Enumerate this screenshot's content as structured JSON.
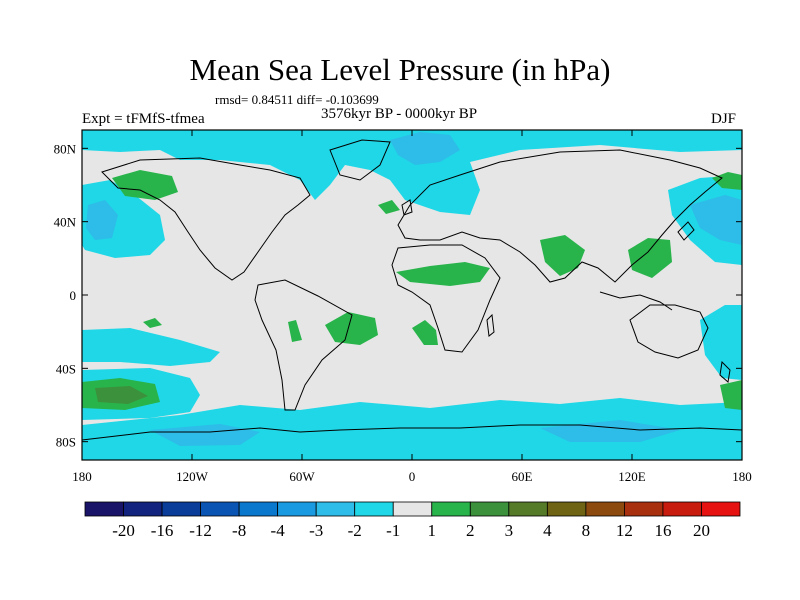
{
  "title": "Mean Sea Level Pressure (in hPa)",
  "stats": "rmsd= 0.84511 diff= -0.103699",
  "left_label": "Expt = tFMfS-tfmea",
  "center_label": "3576kyr BP - 0000kyr BP",
  "right_label": "DJF",
  "map_data": {
    "type": "contour-map",
    "projection": "cylindrical-equidistant",
    "lon_range": [
      -180,
      180
    ],
    "lat_range": [
      -90,
      90
    ],
    "x_ticks": [
      {
        "lon": -180,
        "label": "180"
      },
      {
        "lon": -120,
        "label": "120W"
      },
      {
        "lon": -60,
        "label": "60W"
      },
      {
        "lon": 0,
        "label": "0"
      },
      {
        "lon": 60,
        "label": "60E"
      },
      {
        "lon": 120,
        "label": "120E"
      },
      {
        "lon": 180,
        "label": "180"
      }
    ],
    "y_ticks": [
      {
        "lat": 80,
        "label": "80N"
      },
      {
        "lat": 40,
        "label": "40N"
      },
      {
        "lat": 0,
        "label": "0"
      },
      {
        "lat": -40,
        "label": "40S"
      },
      {
        "lat": -80,
        "label": "80S"
      }
    ],
    "colorbar": {
      "colors": [
        "#1a1469",
        "#12237f",
        "#0a3c99",
        "#0a55b4",
        "#0a78cd",
        "#1a9be1",
        "#2ebce8",
        "#1fd7e6",
        "#e6e6e6",
        "#28b44b",
        "#3c913c",
        "#557a28",
        "#6e6414",
        "#8c4a0e",
        "#a8300e",
        "#c81c0e",
        "#e61212"
      ],
      "labels": [
        "-20",
        "-16",
        "-12",
        "-8",
        "-4",
        "-3",
        "-2",
        "-1",
        "1",
        "2",
        "3",
        "4",
        "8",
        "12",
        "16",
        "20"
      ]
    }
  }
}
